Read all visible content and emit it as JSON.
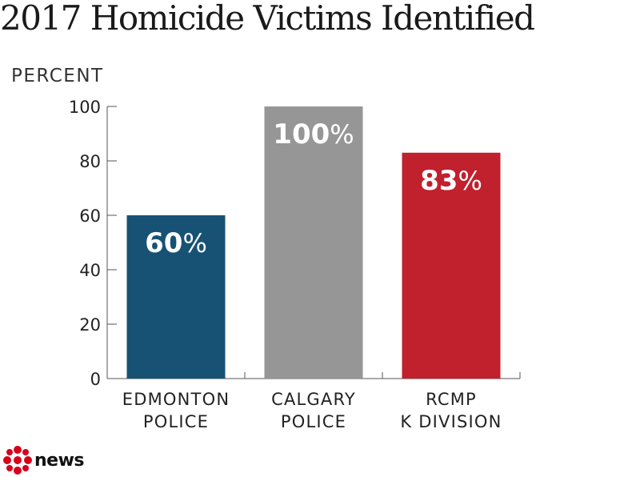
{
  "chart_data": {
    "type": "bar",
    "title": "2017 Homicide Victims Identified",
    "ylabel": "PERCENT",
    "xlabel": "",
    "ylim": [
      0,
      100
    ],
    "yticks": [
      0,
      20,
      40,
      60,
      80,
      100
    ],
    "categories": [
      [
        "EDMONTON",
        "POLICE"
      ],
      [
        "CALGARY",
        "POLICE"
      ],
      [
        "RCMP",
        "K DIVISION"
      ]
    ],
    "values": [
      60,
      100,
      83
    ],
    "bar_colors": [
      "#175275",
      "#969696",
      "#c1202d"
    ],
    "data_label_suffix": "%",
    "grid": false
  },
  "logo": {
    "word": "news",
    "icon": "cbc-gem-icon",
    "color": "#d6001c"
  }
}
